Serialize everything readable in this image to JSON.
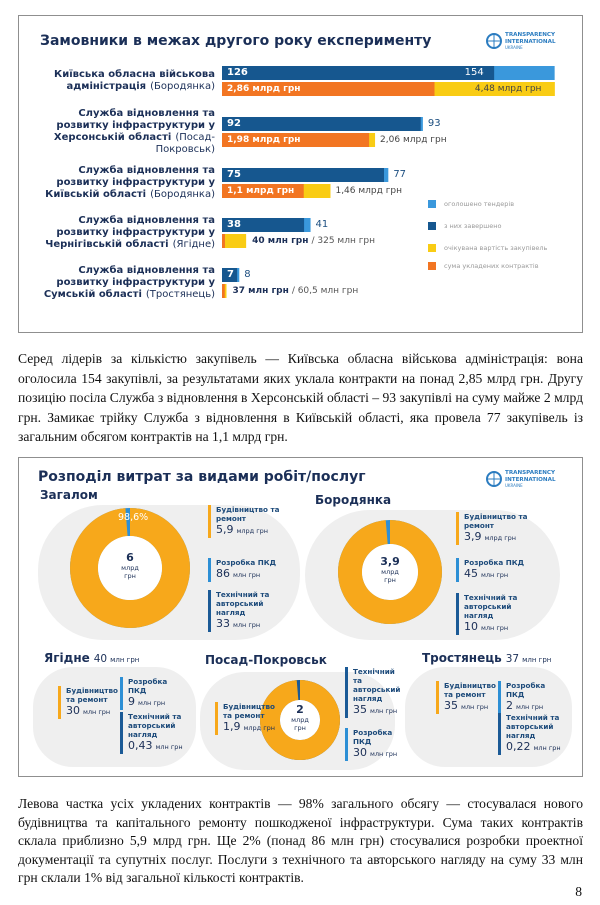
{
  "infographic_1": {
    "title": "Замовники в межах другого року експерименту",
    "logo": [
      "TRANSPARENCY",
      "INTERNATIONAL",
      "UKRAINE"
    ],
    "legend": [
      {
        "label": "оголошено тендерів",
        "color": "#3a98dc"
      },
      {
        "label": "з них завершено",
        "color": "#16578f"
      },
      {
        "label": "очікувана вартість закупівель",
        "color": "#f9cc14"
      },
      {
        "label": "сума укладених контрактів",
        "color": "#f27522"
      }
    ],
    "rows": [
      {
        "name": "Київська обласна військова адміністрація",
        "location": "(Бородянка)",
        "announced": 154,
        "concluded": 126,
        "contracts": 2860,
        "contracts_label": "2,86 млрд грн",
        "expected": 4480,
        "expected_label": "4,48 млрд грн"
      },
      {
        "name": "Служба відновлення та розвитку інфраструктури у Херсонській області",
        "location": "(Посад-Покровськ)",
        "announced": 93,
        "concluded": 92,
        "contracts": 1980,
        "contracts_label": "1,98 млрд грн",
        "expected": 2060,
        "expected_label": "2,06 млрд грн"
      },
      {
        "name": "Служба відновлення та розвитку інфраструктури у Київській області",
        "location": "(Бородянка)",
        "announced": 77,
        "concluded": 75,
        "contracts": 1100,
        "contracts_label": "1,1 млрд грн",
        "expected": 1460,
        "expected_label": "1,46 млрд грн"
      },
      {
        "name": "Служба відновлення та розвитку інфраструктури у Чернігівській області",
        "location": "(Ягідне)",
        "announced": 41,
        "concluded": 38,
        "contracts": 40,
        "contracts_label": "40 млн грн",
        "expected": 325,
        "expected_label": "/ 325 млн грн"
      },
      {
        "name": "Служба відновлення та розвитку інфраструктури у Сумській області",
        "location": "(Тростянець)",
        "announced": 8,
        "concluded": 7,
        "contracts": 37,
        "contracts_label": "37 млн грн",
        "expected": 60.5,
        "expected_label": "/ 60,5 млн грн"
      }
    ]
  },
  "paragraph_1": "Серед лідерів за кількістю закупівель — Київська обласна військова адміністрація: вона оголосила 154 закупівлі, за результатами яких уклала контракти на понад 2,85 млрд грн. Другу позицію посіла Служба з відновлення в Херсонській області – 93 закупівлі на суму майже 2 млрд грн. Замикає трійку Служба з відновлення в Київській області, яка провела 77 закупівель із загальним обсягом контрактів на 1,1 млрд грн.",
  "infographic_2": {
    "title": "Розподіл витрат за видами робіт/послуг",
    "logo": [
      "TRANSPARENCY",
      "INTERNATIONAL",
      "UKRAINE"
    ],
    "panels": [
      {
        "name": "Загалом",
        "share": 98.6,
        "share_label": "98,6%",
        "center_value": "6",
        "center_unit": "млрд грн",
        "items": [
          {
            "label": "Будівництво та ремонт",
            "amount": "5,9",
            "unit": "млрд грн",
            "color": "#f7a81b"
          },
          {
            "label": "Розробка ПКД",
            "amount": "86",
            "unit": "млн грн",
            "color": "#2d8fd5"
          },
          {
            "label": "Технічний та авторський нагляд",
            "amount": "33",
            "unit": "млн грн",
            "color": "#1b5a96"
          }
        ]
      },
      {
        "name": "Бородянка",
        "center_value": "3,9",
        "center_unit": "млрд грн",
        "items": [
          {
            "label": "Будівництво та ремонт",
            "amount": "3,9",
            "unit": "млрд грн",
            "color": "#f7a81b"
          },
          {
            "label": "Розробка ПКД",
            "amount": "45",
            "unit": "млн грн",
            "color": "#2d8fd5"
          },
          {
            "label": "Технічний та авторський нагляд",
            "amount": "10",
            "unit": "млн грн",
            "color": "#1b5a96"
          }
        ]
      },
      {
        "name": "Ягідне",
        "total": "40",
        "unit": "млн грн",
        "items": [
          {
            "label": "Будівництво та ремонт",
            "amount": "30",
            "unit": "млн грн",
            "color": "#f7a81b"
          },
          {
            "label": "Розробка ПКД",
            "amount": "9",
            "unit": "млн грн",
            "color": "#2d8fd5"
          },
          {
            "label": "Технічний та авторський нагляд",
            "amount": "0,43",
            "unit": "млн грн",
            "color": "#1b5a96"
          }
        ]
      },
      {
        "name": "Посад-Покровськ",
        "center_value": "2",
        "center_unit": "млрд грн",
        "items": [
          {
            "label": "Будівництво та ремонт",
            "amount": "1,9",
            "unit": "млрд грн",
            "color": "#f7a81b"
          },
          {
            "label": "Технічний та авторський нагляд",
            "amount": "35",
            "unit": "млн грн",
            "color": "#1b5a96"
          },
          {
            "label": "Розробка ПКД",
            "amount": "30",
            "unit": "млн грн",
            "color": "#2d8fd5"
          }
        ]
      },
      {
        "name": "Тростянець",
        "total": "37",
        "unit": "млн грн",
        "items": [
          {
            "label": "Будівництво та ремонт",
            "amount": "35",
            "unit": "млн грн",
            "color": "#f7a81b"
          },
          {
            "label": "Розробка ПКД",
            "amount": "2",
            "unit": "млн грн",
            "color": "#2d8fd5"
          },
          {
            "label": "Технічний та авторський нагляд",
            "amount": "0,22",
            "unit": "млн грн",
            "color": "#1b5a96"
          }
        ]
      }
    ]
  },
  "paragraph_2": "Левова частка усіх укладених контрактів — 98% загального обсягу — стосувалася нового будівництва та капітального ремонту пошкодженої інфраструктури. Сума таких контрактів склала приблизно 5,9 млрд грн. Ще 2% (понад 86 млн грн) стосувалися розробки проектної документації та супутніх послуг. Послуги з технічного та авторського нагляду на суму 33 млн грн склали 1% від загальної кількості контрактів.",
  "page_number": "8"
}
